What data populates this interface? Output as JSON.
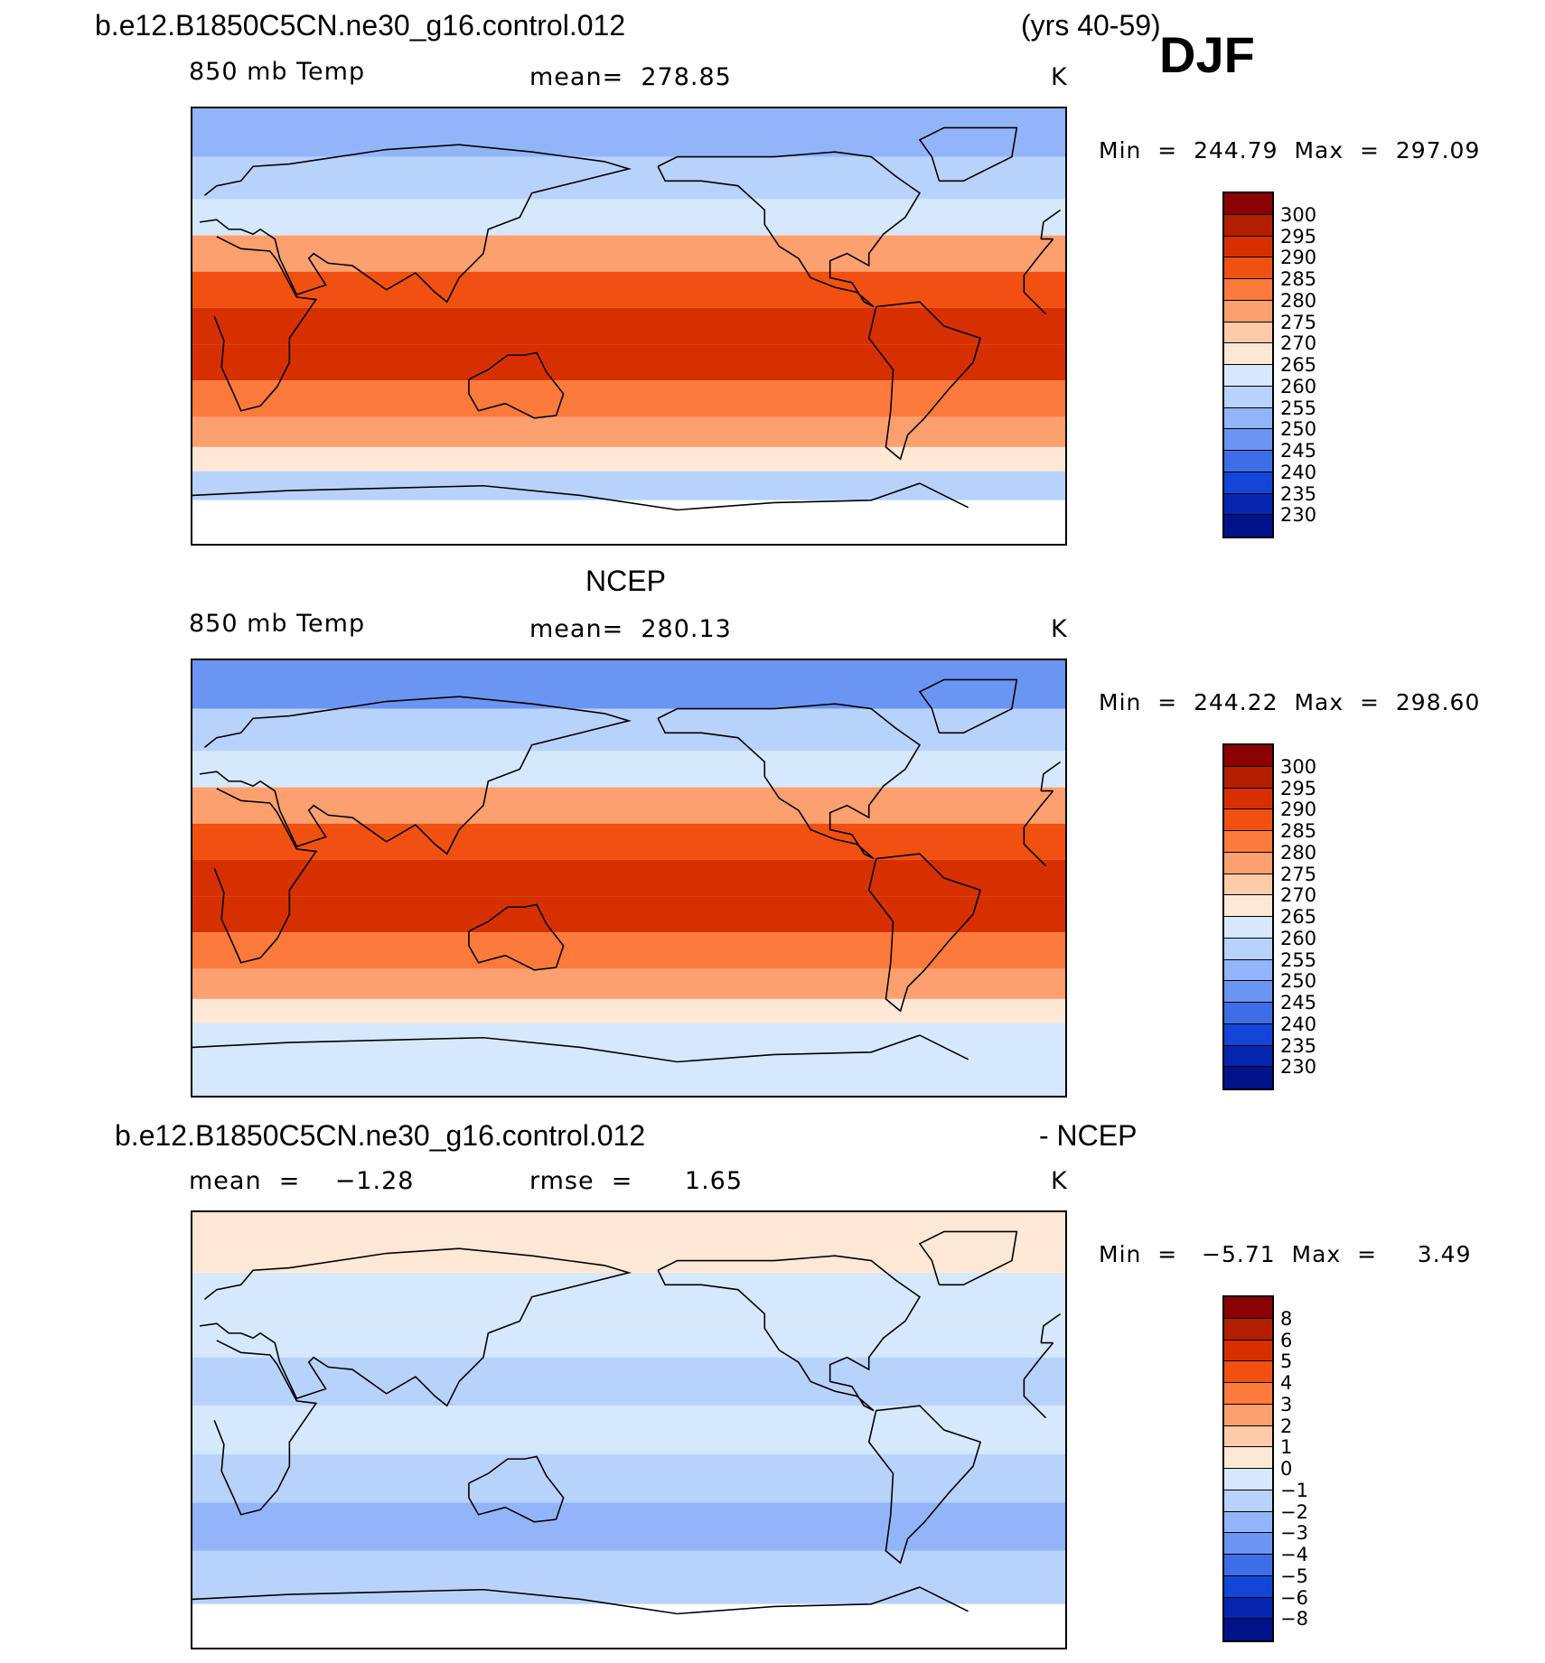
{
  "header": {
    "case_name": "b.e12.B1850C5CN.ne30_g16.control.012",
    "years": "(yrs 40-59)",
    "season": "DJF"
  },
  "panels": [
    {
      "title": "",
      "left": "850 mb Temp",
      "center": "mean=  278.85",
      "right": "K",
      "minmax": "Min  =  244.79  Max  =  297.09"
    },
    {
      "title": "NCEP",
      "left": "850 mb Temp",
      "center": "mean=  280.13",
      "right": "K",
      "minmax": "Min  =  244.22  Max  =  298.60"
    },
    {
      "title": "b.e12.B1850C5CN.ne30_g16.control.012",
      "title_right": "- NCEP",
      "left": "mean  =    −1.28",
      "center": "rmse  =      1.65",
      "right": "K",
      "minmax": "Min  =   −5.71  Max  =     3.49"
    }
  ],
  "colorbars": {
    "temp": {
      "labels": [
        "300",
        "295",
        "290",
        "285",
        "280",
        "275",
        "270",
        "265",
        "260",
        "255",
        "250",
        "245",
        "240",
        "235",
        "230"
      ],
      "colors": [
        "#8b0000",
        "#b11f00",
        "#d73000",
        "#f05010",
        "#fb7a3c",
        "#fda070",
        "#fdcbaa",
        "#fde8d5",
        "#d6e8fb",
        "#b8d3fb",
        "#92b5fa",
        "#6b95f2",
        "#3d6ee8",
        "#1345d8",
        "#0626b0",
        "#00128a"
      ]
    },
    "diff": {
      "labels": [
        "8",
        "6",
        "5",
        "4",
        "3",
        "2",
        "1",
        "0",
        "−1",
        "−2",
        "−3",
        "−4",
        "−5",
        "−6",
        "−8"
      ],
      "colors": [
        "#8b0000",
        "#b11f00",
        "#d73000",
        "#f05010",
        "#fb7a3c",
        "#fda070",
        "#fdcbaa",
        "#fde8d5",
        "#d6e8fb",
        "#b8d3fb",
        "#92b5fa",
        "#6b95f2",
        "#3d6ee8",
        "#1345d8",
        "#0626b0",
        "#00128a"
      ]
    }
  },
  "chart_data": [
    {
      "type": "heatmap",
      "title": "850 mb Temp",
      "units": "K",
      "mean": 278.85,
      "min": 244.79,
      "max": 297.09,
      "levels": [
        230,
        235,
        240,
        245,
        250,
        255,
        260,
        265,
        270,
        275,
        280,
        285,
        290,
        295,
        300
      ],
      "zonal_bands": [
        {
          "lat": 80,
          "value": 250
        },
        {
          "lat": 60,
          "value": 255
        },
        {
          "lat": 45,
          "value": 262
        },
        {
          "lat": 30,
          "value": 277
        },
        {
          "lat": 15,
          "value": 287
        },
        {
          "lat": 0,
          "value": 290
        },
        {
          "lat": -15,
          "value": 290
        },
        {
          "lat": -30,
          "value": 283
        },
        {
          "lat": -45,
          "value": 275
        },
        {
          "lat": -55,
          "value": 268
        },
        {
          "lat": -65,
          "value": 258
        }
      ]
    },
    {
      "type": "heatmap",
      "title": "850 mb Temp",
      "units": "K",
      "mean": 280.13,
      "min": 244.22,
      "max": 298.6,
      "levels": [
        230,
        235,
        240,
        245,
        250,
        255,
        260,
        265,
        270,
        275,
        280,
        285,
        290,
        295,
        300
      ],
      "zonal_bands": [
        {
          "lat": 80,
          "value": 248
        },
        {
          "lat": 60,
          "value": 255
        },
        {
          "lat": 45,
          "value": 262
        },
        {
          "lat": 30,
          "value": 278
        },
        {
          "lat": 15,
          "value": 289
        },
        {
          "lat": 0,
          "value": 291
        },
        {
          "lat": -15,
          "value": 292
        },
        {
          "lat": -30,
          "value": 284
        },
        {
          "lat": -45,
          "value": 276
        },
        {
          "lat": -55,
          "value": 268
        },
        {
          "lat": -65,
          "value": 260
        }
      ]
    },
    {
      "type": "heatmap",
      "title": "- NCEP",
      "units": "K",
      "mean": -1.28,
      "rmse": 1.65,
      "min": -5.71,
      "max": 3.49,
      "levels": [
        -8,
        -6,
        -5,
        -4,
        -3,
        -2,
        -1,
        0,
        1,
        2,
        3,
        4,
        5,
        6,
        8
      ],
      "zonal_bands": [
        {
          "lat": 75,
          "value": 0.5
        },
        {
          "lat": 55,
          "value": -0.5
        },
        {
          "lat": 40,
          "value": -1
        },
        {
          "lat": 20,
          "value": -1.5
        },
        {
          "lat": 0,
          "value": -1
        },
        {
          "lat": -20,
          "value": -1.5
        },
        {
          "lat": -40,
          "value": -2.5
        },
        {
          "lat": -60,
          "value": -1.5
        }
      ]
    }
  ]
}
